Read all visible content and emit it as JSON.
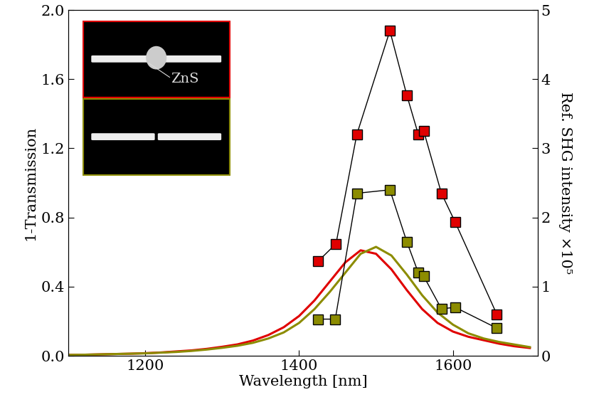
{
  "chart_data": {
    "type": "line",
    "x_label": "Wavelength [nm]",
    "y_label": "1-Transmission",
    "y2_label": "Ref. SHG intensity ×10⁵",
    "annotations": [
      "ZnS"
    ],
    "xlim": [
      1100,
      1710
    ],
    "xticks": [
      1200,
      1400,
      1600
    ],
    "ylim": [
      0,
      2.0
    ],
    "yticks": [
      {
        "value": 0,
        "label": "0.0"
      },
      {
        "value": 0.4,
        "label": "0.4"
      },
      {
        "value": 0.8,
        "label": "0.8"
      },
      {
        "value": 1.2,
        "label": "1.2"
      },
      {
        "value": 1.6,
        "label": "1.6"
      },
      {
        "value": 2.0,
        "label": "2.0"
      }
    ],
    "y2lim": [
      0,
      5
    ],
    "y2ticks": [
      0,
      1,
      2,
      3,
      4,
      5
    ],
    "series": [
      {
        "type": "line",
        "color": "#e00000",
        "line_style": "solid",
        "x": [
          1100,
          1120,
          1140,
          1160,
          1180,
          1200,
          1220,
          1240,
          1260,
          1280,
          1300,
          1320,
          1340,
          1360,
          1380,
          1400,
          1420,
          1440,
          1460,
          1480,
          1500,
          1520,
          1540,
          1560,
          1580,
          1600,
          1620,
          1640,
          1660,
          1680,
          1700
        ],
        "values": [
          0.005,
          0.006,
          0.008,
          0.01,
          0.012,
          0.015,
          0.019,
          0.025,
          0.031,
          0.04,
          0.052,
          0.066,
          0.088,
          0.12,
          0.165,
          0.23,
          0.32,
          0.43,
          0.54,
          0.61,
          0.59,
          0.5,
          0.38,
          0.27,
          0.19,
          0.14,
          0.11,
          0.09,
          0.07,
          0.055,
          0.045
        ]
      },
      {
        "type": "line",
        "color": "#8c8c00",
        "line_style": "solid",
        "x": [
          1100,
          1120,
          1140,
          1160,
          1180,
          1200,
          1220,
          1240,
          1260,
          1280,
          1300,
          1320,
          1340,
          1360,
          1380,
          1400,
          1420,
          1440,
          1460,
          1480,
          1500,
          1520,
          1540,
          1560,
          1580,
          1600,
          1620,
          1640,
          1660,
          1680,
          1700
        ],
        "values": [
          0.005,
          0.006,
          0.008,
          0.01,
          0.012,
          0.014,
          0.018,
          0.022,
          0.028,
          0.036,
          0.046,
          0.058,
          0.075,
          0.1,
          0.135,
          0.19,
          0.27,
          0.37,
          0.48,
          0.59,
          0.63,
          0.58,
          0.47,
          0.35,
          0.25,
          0.18,
          0.13,
          0.1,
          0.08,
          0.065,
          0.05
        ]
      },
      {
        "type": "line",
        "axis": "y2",
        "color": "#e00000",
        "marker": "square",
        "line_style": "solid",
        "x": [
          1425,
          1448,
          1475,
          1518,
          1540,
          1555,
          1562,
          1585,
          1603,
          1657
        ],
        "values": [
          1.37,
          1.62,
          3.2,
          4.7,
          3.77,
          3.2,
          3.25,
          2.35,
          1.93,
          0.6
        ]
      },
      {
        "type": "line",
        "axis": "y2",
        "color": "#8c8c00",
        "marker": "square",
        "line_style": "solid",
        "x": [
          1425,
          1447,
          1475,
          1518,
          1540,
          1555,
          1562,
          1585,
          1603,
          1657
        ],
        "values": [
          0.53,
          0.53,
          2.35,
          2.4,
          1.65,
          1.2,
          1.15,
          0.68,
          0.7,
          0.4
        ]
      }
    ]
  }
}
